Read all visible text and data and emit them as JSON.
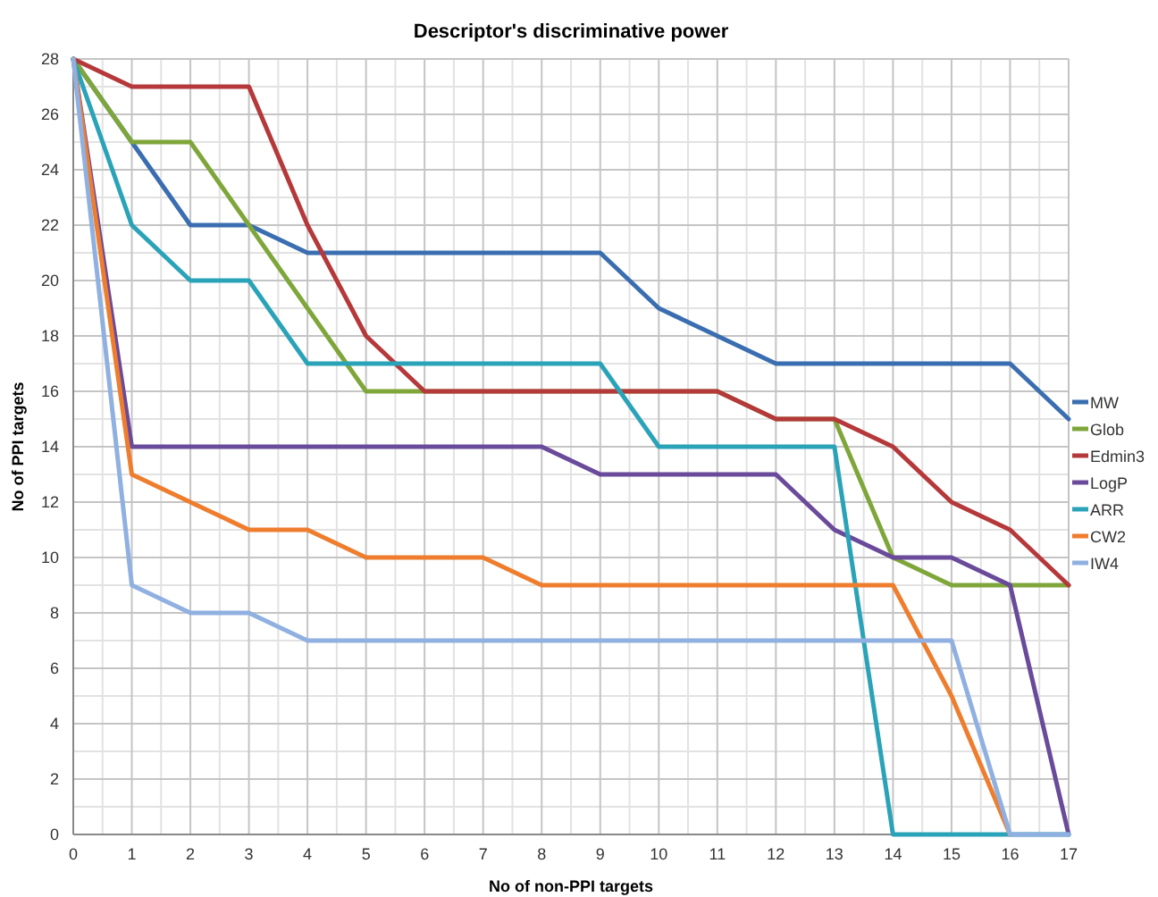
{
  "chart_data": {
    "type": "line",
    "title": "Descriptor's discriminative power",
    "xlabel": "No of non-PPI targets",
    "ylabel": "No of PPI targets",
    "x": [
      0,
      1,
      2,
      3,
      4,
      5,
      6,
      7,
      8,
      9,
      10,
      11,
      12,
      13,
      14,
      15,
      16,
      17
    ],
    "xlim": [
      0,
      17
    ],
    "xticks": [
      0,
      1,
      2,
      3,
      4,
      5,
      6,
      7,
      8,
      9,
      10,
      11,
      12,
      13,
      14,
      15,
      16,
      17
    ],
    "ylim": [
      0,
      28
    ],
    "yticks": [
      0,
      2,
      4,
      6,
      8,
      10,
      12,
      14,
      16,
      18,
      20,
      22,
      24,
      26,
      28
    ],
    "grid": true,
    "legend": "right",
    "marker": "none",
    "line_style": "solid",
    "series": [
      {
        "name": "MW",
        "color": "#3a6eb0",
        "values": [
          28,
          25,
          22,
          22,
          21,
          21,
          21,
          21,
          21,
          21,
          19,
          18,
          17,
          17,
          17,
          17,
          17,
          15
        ]
      },
      {
        "name": "Glob",
        "color": "#7fa63a",
        "values": [
          28,
          25,
          25,
          22,
          19,
          16,
          16,
          16,
          16,
          16,
          16,
          16,
          15,
          15,
          10,
          9,
          9,
          9
        ]
      },
      {
        "name": "Edmin3",
        "color": "#b5383a",
        "values": [
          28,
          27,
          27,
          27,
          22,
          18,
          16,
          16,
          16,
          16,
          16,
          16,
          15,
          15,
          14,
          12,
          11,
          9
        ]
      },
      {
        "name": "LogP",
        "color": "#6a4a9a",
        "values": [
          28,
          14,
          14,
          14,
          14,
          14,
          14,
          14,
          14,
          13,
          13,
          13,
          13,
          11,
          10,
          10,
          9,
          0
        ]
      },
      {
        "name": "ARR",
        "color": "#2aa3b8",
        "values": [
          28,
          22,
          20,
          20,
          17,
          17,
          17,
          17,
          17,
          17,
          14,
          14,
          14,
          14,
          0,
          0,
          0,
          0
        ]
      },
      {
        "name": "CW2",
        "color": "#ee7d2e",
        "values": [
          28,
          13,
          12,
          11,
          11,
          10,
          10,
          10,
          9,
          9,
          9,
          9,
          9,
          9,
          9,
          5,
          0,
          null
        ]
      },
      {
        "name": "IW4",
        "color": "#8fb0e0",
        "values": [
          28,
          9,
          8,
          8,
          7,
          7,
          7,
          7,
          7,
          7,
          7,
          7,
          7,
          7,
          7,
          7,
          0,
          0
        ]
      }
    ]
  }
}
